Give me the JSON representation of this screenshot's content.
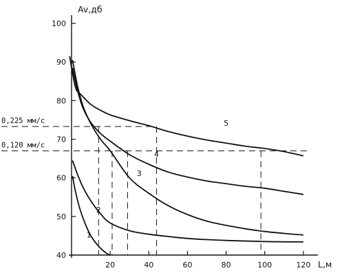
{
  "chart_data": {
    "type": "line",
    "ylabel": "Av,дб",
    "xlabel": "L,м",
    "xlim": [
      0,
      125
    ],
    "ylim": [
      40,
      100
    ],
    "xticks": [
      20,
      40,
      60,
      80,
      100,
      120
    ],
    "yticks": [
      40,
      50,
      60,
      70,
      80,
      90,
      100
    ],
    "grid": false,
    "series": [
      {
        "name": "1",
        "label_at": [
          9,
          44.5
        ],
        "x": [
          0.5,
          2,
          4,
          6,
          8,
          10,
          12,
          14,
          16,
          18,
          20
        ],
        "y": [
          60.5,
          56.5,
          52.5,
          49.5,
          47.0,
          45.0,
          43.5,
          42.3,
          41.3,
          40.5,
          39.9
        ]
      },
      {
        "name": "2",
        "label_at": [
          14,
          51
        ],
        "x": [
          0.5,
          3,
          6,
          10,
          15,
          20,
          30,
          40,
          50,
          60,
          70,
          80,
          100,
          120
        ],
        "y": [
          64.5,
          61.0,
          57.5,
          54.0,
          50.7,
          48.3,
          46.3,
          45.4,
          44.8,
          44.3,
          44.0,
          43.8,
          43.5,
          43.4
        ]
      },
      {
        "name": "3",
        "label_at": [
          35,
          60.5
        ],
        "x": [
          0.5,
          3,
          6,
          10,
          15,
          20,
          30,
          40,
          50,
          60,
          70,
          80,
          90,
          100,
          110,
          120
        ],
        "y": [
          90.5,
          84.0,
          78.5,
          74.0,
          70.0,
          67.0,
          60.0,
          56.0,
          52.8,
          50.5,
          48.8,
          47.7,
          46.8,
          46.1,
          45.6,
          45.2
        ]
      },
      {
        "name": "4",
        "label_at": [
          44,
          65.5
        ],
        "x": [
          0.5,
          3,
          6,
          10,
          15,
          20,
          30,
          40,
          50,
          60,
          70,
          80,
          90,
          100,
          110,
          120
        ],
        "y": [
          88.5,
          82.8,
          78.0,
          74.3,
          71.5,
          69.5,
          66.0,
          63.5,
          61.5,
          60.2,
          59.2,
          58.5,
          57.8,
          57.3,
          56.5,
          55.7
        ]
      },
      {
        "name": "5",
        "label_at": [
          80,
          73.5
        ],
        "x": [
          -1,
          2,
          5,
          10,
          15,
          20,
          30,
          40,
          50,
          60,
          70,
          80,
          90,
          100,
          110,
          120
        ],
        "y": [
          91.5,
          83.5,
          81.5,
          79.0,
          77.5,
          76.3,
          74.8,
          73.5,
          72.0,
          70.8,
          69.8,
          69.0,
          68.2,
          67.6,
          66.8,
          65.7
        ]
      }
    ],
    "reference_lines": [
      {
        "label": "0,225 мм/с",
        "y": 73.3,
        "x_ticks": [
          14,
          44
        ]
      },
      {
        "label": "0,120 мм/с",
        "y": 67.0,
        "x_ticks": [
          21,
          29,
          98
        ]
      }
    ]
  }
}
